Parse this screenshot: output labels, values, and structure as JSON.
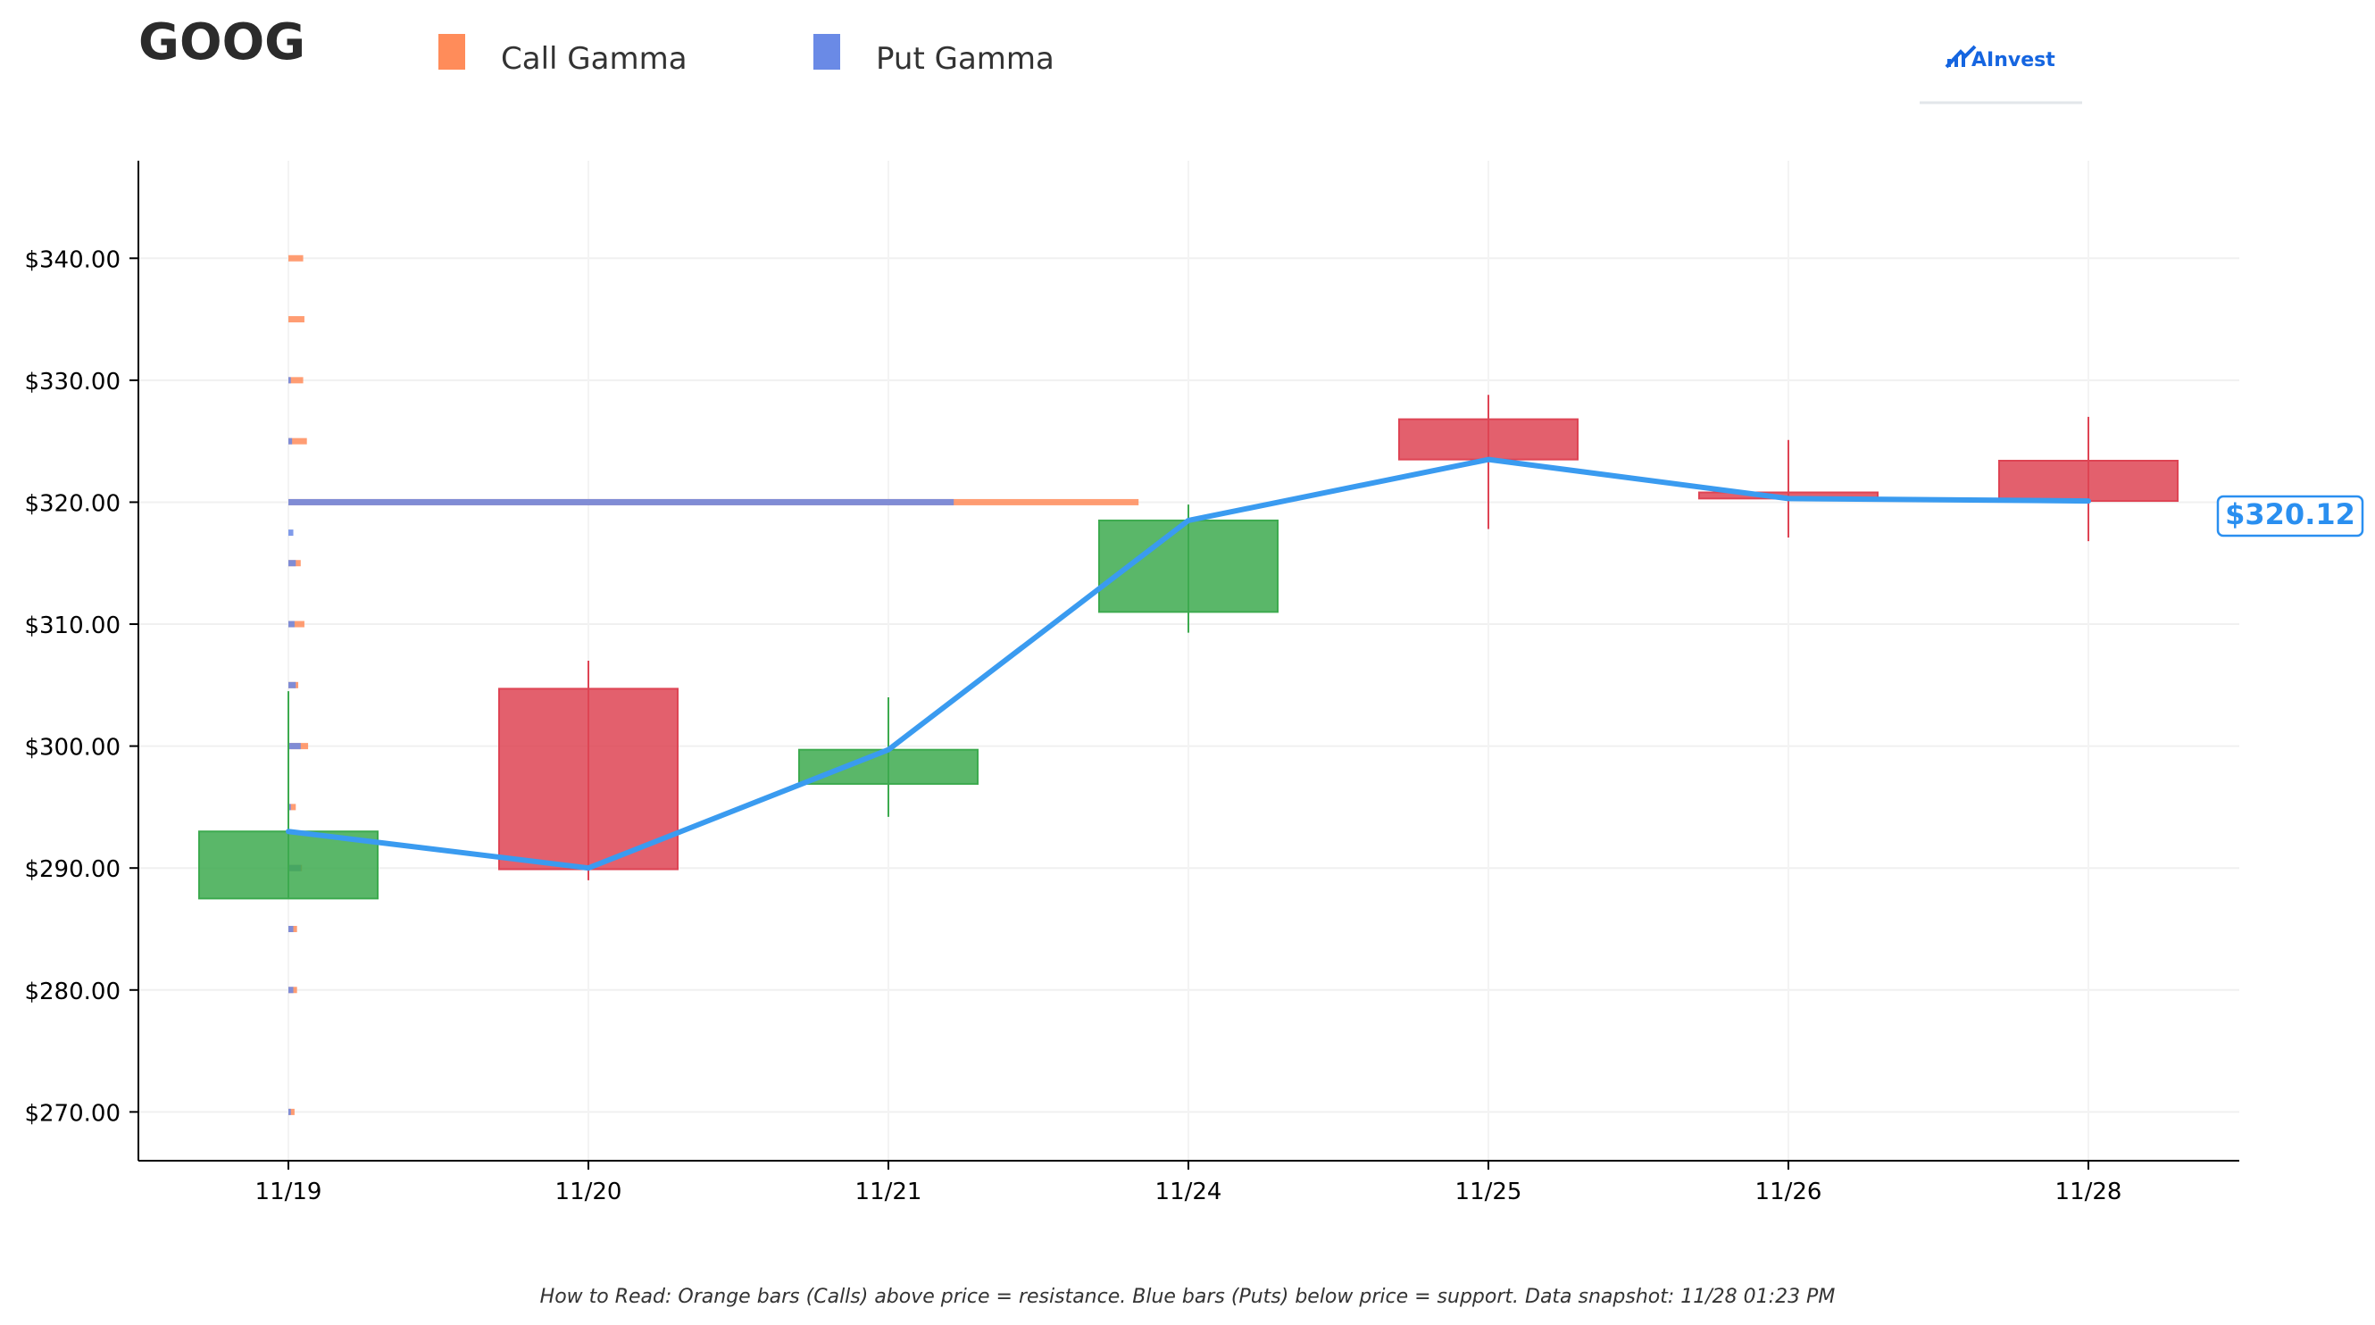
{
  "header": {
    "ticker": "GOOG",
    "legend": [
      {
        "label": "Call Gamma",
        "color": "#ff8c5a"
      },
      {
        "label": "Put Gamma",
        "color": "#6a8ae6"
      }
    ],
    "logo_text": "AInvest",
    "logo_icon": "ainvest-logo-icon"
  },
  "footnote": "How to Read: Orange bars (Calls) above price = resistance. Blue bars (Puts) below price = support. Data snapshot: 11/28 01:23 PM",
  "price_badge": "$320.12",
  "colors": {
    "up": "#3daa4f",
    "down": "#de4454",
    "line": "#3a9bf0",
    "call": "#ff8c5a",
    "put": "#6a8ae6",
    "badge": "#2a8ff0"
  },
  "chart_data": {
    "type": "candlestick",
    "title": "GOOG",
    "ylim": [
      266,
      348
    ],
    "grid": true,
    "categories": [
      "11/19",
      "11/20",
      "11/21",
      "11/24",
      "11/25",
      "11/26",
      "11/28"
    ],
    "y_ticks": [
      270,
      280,
      290,
      300,
      310,
      320,
      330,
      340
    ],
    "y_tick_labels": [
      "$270.00",
      "$280.00",
      "$290.00",
      "$300.00",
      "$310.00",
      "$320.00",
      "$330.00",
      "$340.00"
    ],
    "candles": [
      {
        "date": "11/19",
        "open": 287.5,
        "high": 304.5,
        "low": 287.5,
        "close": 293.0
      },
      {
        "date": "11/20",
        "open": 304.7,
        "high": 307.0,
        "low": 289.0,
        "close": 289.9
      },
      {
        "date": "11/21",
        "open": 296.9,
        "high": 304.0,
        "low": 294.2,
        "close": 299.7
      },
      {
        "date": "11/24",
        "open": 311.0,
        "high": 319.8,
        "low": 309.3,
        "close": 318.5
      },
      {
        "date": "11/25",
        "open": 326.8,
        "high": 328.8,
        "low": 317.8,
        "close": 323.5
      },
      {
        "date": "11/26",
        "open": 320.8,
        "high": 325.1,
        "low": 317.1,
        "close": 320.3
      },
      {
        "date": "11/28",
        "open": 323.4,
        "high": 327.0,
        "low": 316.8,
        "close": 320.1
      }
    ],
    "close_line": [
      293.0,
      290.0,
      299.7,
      318.5,
      323.5,
      320.3,
      320.1
    ],
    "gamma_levels": [
      {
        "strike": 340,
        "call": 0.12,
        "put": 0.0
      },
      {
        "strike": 335,
        "call": 0.13,
        "put": 0.0
      },
      {
        "strike": 330,
        "call": 0.12,
        "put": 0.02
      },
      {
        "strike": 325,
        "call": 0.15,
        "put": 0.03
      },
      {
        "strike": 320,
        "call": 6.9,
        "put": 5.4
      },
      {
        "strike": 317.5,
        "call": 0.0,
        "put": 0.04
      },
      {
        "strike": 315,
        "call": 0.1,
        "put": 0.06
      },
      {
        "strike": 310,
        "call": 0.13,
        "put": 0.05
      },
      {
        "strike": 305,
        "call": 0.08,
        "put": 0.06
      },
      {
        "strike": 300,
        "call": 0.16,
        "put": 0.1
      },
      {
        "strike": 295,
        "call": 0.06,
        "put": 0.02
      },
      {
        "strike": 290,
        "call": 0.11,
        "put": 0.1
      },
      {
        "strike": 285,
        "call": 0.07,
        "put": 0.04
      },
      {
        "strike": 280,
        "call": 0.07,
        "put": 0.04
      },
      {
        "strike": 270,
        "call": 0.05,
        "put": 0.02
      }
    ],
    "current_price": 320.12
  }
}
